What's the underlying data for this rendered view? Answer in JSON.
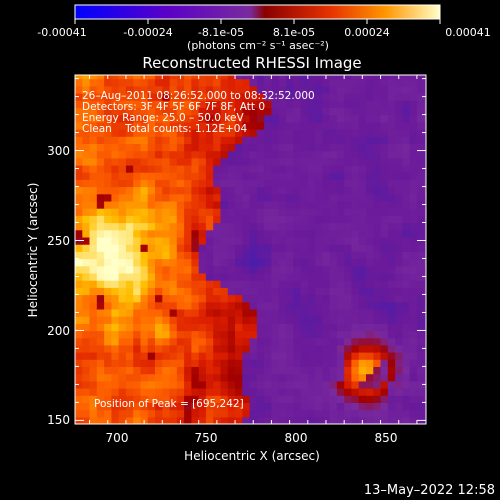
{
  "colorbar": {
    "tick_labels": [
      "-0.00041",
      "-0.00024",
      "-8.1e-05",
      "8.1e-05",
      "0.00024",
      "0.00041"
    ],
    "tick_values": [
      -0.00041,
      -0.00024,
      -8.1e-05,
      8.1e-05,
      0.00024,
      0.00041
    ],
    "range": [
      -0.00041,
      0.00041
    ],
    "units_label": "(photons cm⁻² s⁻¹ asec⁻²)"
  },
  "footer": {
    "timestamp": "13–May–2022 12:58"
  },
  "chart_data": {
    "type": "heatmap",
    "title": "Reconstructed RHESSI Image",
    "xlabel": "Heliocentric X (arcsec)",
    "ylabel": "Heliocentric Y (arcsec)",
    "xlim": [
      677,
      870
    ],
    "ylim": [
      148,
      342
    ],
    "x_ticks": [
      700,
      750,
      800,
      850
    ],
    "y_ticks": [
      150,
      200,
      250,
      300
    ],
    "annotations": [
      "26–Aug–2011 08:26:52.000 to 08:32:52.000",
      "Detectors: 3F 4F 5F 6F 7F 8F, Att 0",
      "Energy Range: 25.0 – 50.0 keV",
      "Clean    Total counts: 1.12E+04"
    ],
    "peak_label": "Position of Peak = [695,242]",
    "peak_position": [
      695,
      242
    ],
    "grid_resolution_arcsec": 4,
    "colormap": [
      "#0000ff",
      "#3c1eb4",
      "#6a1a9a",
      "#7a2a9e",
      "#a00000",
      "#dc1e00",
      "#ff6400",
      "#ffbe00",
      "#ffffc8"
    ]
  }
}
